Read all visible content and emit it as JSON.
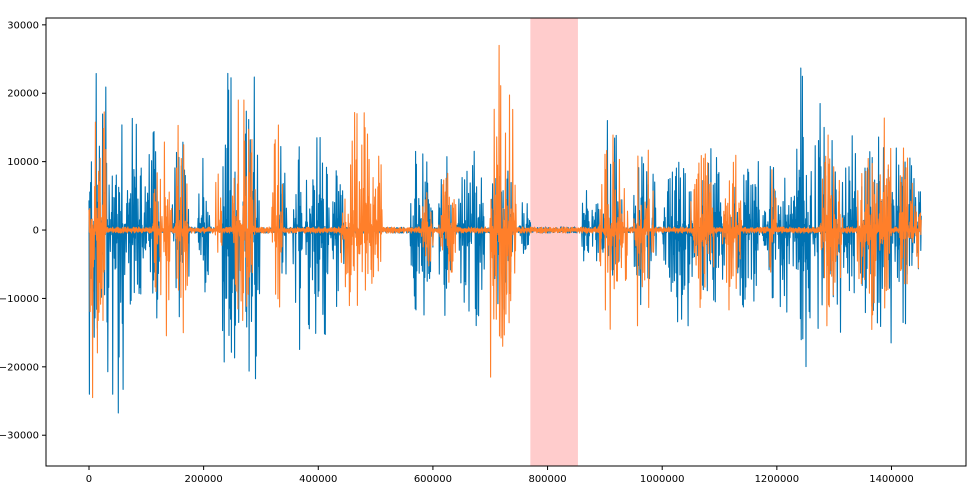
{
  "chart_data": {
    "type": "line",
    "title": "",
    "xlabel": "",
    "ylabel": "",
    "xlim": [
      -75000,
      1530000
    ],
    "ylim": [
      -34500,
      31000
    ],
    "x_ticks": [
      0,
      200000,
      400000,
      600000,
      800000,
      1000000,
      1200000,
      1400000
    ],
    "x_tick_labels": [
      "0",
      "200000",
      "400000",
      "600000",
      "800000",
      "1000000",
      "1200000",
      "1400000"
    ],
    "y_ticks": [
      30000,
      20000,
      10000,
      0,
      -10000,
      -20000,
      -30000
    ],
    "y_tick_labels": [
      "30000",
      "20000",
      "10000",
      "0",
      "−10000",
      "−20000",
      "−30000"
    ],
    "grid": false,
    "highlight_span": {
      "x_start": 770000,
      "x_end": 853000,
      "color": "#ffcccc"
    },
    "series": [
      {
        "color": "#0072b2",
        "bursts": [
          {
            "x_start": 0,
            "x_end": 45000,
            "amp_pos": 27500,
            "amp_neg": -24000
          },
          {
            "x_start": 45000,
            "x_end": 65000,
            "amp_pos": 28300,
            "amp_neg": -31500
          },
          {
            "x_start": 65000,
            "x_end": 100000,
            "amp_pos": 19000,
            "amp_neg": -16000
          },
          {
            "x_start": 100000,
            "x_end": 125000,
            "amp_pos": 15000,
            "amp_neg": -15000
          },
          {
            "x_start": 145000,
            "x_end": 175000,
            "amp_pos": 14500,
            "amp_neg": -17500
          },
          {
            "x_start": 190000,
            "x_end": 210000,
            "amp_pos": 13000,
            "amp_neg": -13500
          },
          {
            "x_start": 232000,
            "x_end": 262000,
            "amp_pos": 27000,
            "amp_neg": -31000
          },
          {
            "x_start": 268000,
            "x_end": 298000,
            "amp_pos": 28000,
            "amp_neg": -31000
          },
          {
            "x_start": 330000,
            "x_end": 345000,
            "amp_pos": 17000,
            "amp_neg": -12000
          },
          {
            "x_start": 355000,
            "x_end": 372000,
            "amp_pos": 13500,
            "amp_neg": -21500
          },
          {
            "x_start": 378000,
            "x_end": 420000,
            "amp_pos": 16500,
            "amp_neg": -23500
          },
          {
            "x_start": 420000,
            "x_end": 445000,
            "amp_pos": 10000,
            "amp_neg": -12000
          },
          {
            "x_start": 560000,
            "x_end": 600000,
            "amp_pos": 11500,
            "amp_neg": -14500
          },
          {
            "x_start": 610000,
            "x_end": 635000,
            "amp_pos": 11000,
            "amp_neg": -13000
          },
          {
            "x_start": 640000,
            "x_end": 690000,
            "amp_pos": 13000,
            "amp_neg": -16000
          },
          {
            "x_start": 700000,
            "x_end": 740000,
            "amp_pos": 12000,
            "amp_neg": -13500
          },
          {
            "x_start": 750000,
            "x_end": 770000,
            "amp_pos": 5000,
            "amp_neg": -4000
          },
          {
            "x_start": 860000,
            "x_end": 890000,
            "amp_pos": 9000,
            "amp_neg": -9500
          },
          {
            "x_start": 895000,
            "x_end": 930000,
            "amp_pos": 16000,
            "amp_neg": -12000
          },
          {
            "x_start": 950000,
            "x_end": 990000,
            "amp_pos": 13000,
            "amp_neg": -13000
          },
          {
            "x_start": 1000000,
            "x_end": 1060000,
            "amp_pos": 10000,
            "amp_neg": -14000
          },
          {
            "x_start": 1060000,
            "x_end": 1110000,
            "amp_pos": 12500,
            "amp_neg": -13000
          },
          {
            "x_start": 1120000,
            "x_end": 1170000,
            "amp_pos": 10000,
            "amp_neg": -13500
          },
          {
            "x_start": 1175000,
            "x_end": 1230000,
            "amp_pos": 11500,
            "amp_neg": -12000
          },
          {
            "x_start": 1230000,
            "x_end": 1260000,
            "amp_pos": 25500,
            "amp_neg": -26000
          },
          {
            "x_start": 1260000,
            "x_end": 1290000,
            "amp_pos": 18500,
            "amp_neg": -18500
          },
          {
            "x_start": 1290000,
            "x_end": 1340000,
            "amp_pos": 21000,
            "amp_neg": -17000
          },
          {
            "x_start": 1345000,
            "x_end": 1400000,
            "amp_pos": 15000,
            "amp_neg": -16500
          },
          {
            "x_start": 1400000,
            "x_end": 1452000,
            "amp_pos": 12000,
            "amp_neg": -14000
          }
        ]
      },
      {
        "color": "#ff7f2a",
        "bursts": [
          {
            "x_start": 0,
            "x_end": 30000,
            "amp_pos": 28000,
            "amp_neg": -24500
          },
          {
            "x_start": 110000,
            "x_end": 145000,
            "amp_pos": 17000,
            "amp_neg": -18500
          },
          {
            "x_start": 150000,
            "x_end": 175000,
            "amp_pos": 19500,
            "amp_neg": -17000
          },
          {
            "x_start": 218000,
            "x_end": 232000,
            "amp_pos": 9000,
            "amp_neg": -7000
          },
          {
            "x_start": 250000,
            "x_end": 290000,
            "amp_pos": 19000,
            "amp_neg": -15000
          },
          {
            "x_start": 318000,
            "x_end": 338000,
            "amp_pos": 16000,
            "amp_neg": -21500
          },
          {
            "x_start": 440000,
            "x_end": 500000,
            "amp_pos": 18500,
            "amp_neg": -14500
          },
          {
            "x_start": 500000,
            "x_end": 512000,
            "amp_pos": 15000,
            "amp_neg": -10000
          },
          {
            "x_start": 580000,
            "x_end": 600000,
            "amp_pos": 6000,
            "amp_neg": -6000
          },
          {
            "x_start": 610000,
            "x_end": 640000,
            "amp_pos": 9000,
            "amp_neg": -9000
          },
          {
            "x_start": 700000,
            "x_end": 745000,
            "amp_pos": 27000,
            "amp_neg": -21500
          },
          {
            "x_start": 890000,
            "x_end": 940000,
            "amp_pos": 14500,
            "amp_neg": -14500
          },
          {
            "x_start": 950000,
            "x_end": 985000,
            "amp_pos": 14000,
            "amp_neg": -14000
          },
          {
            "x_start": 1050000,
            "x_end": 1090000,
            "amp_pos": 13500,
            "amp_neg": -14000
          },
          {
            "x_start": 1105000,
            "x_end": 1140000,
            "amp_pos": 12000,
            "amp_neg": -13000
          },
          {
            "x_start": 1185000,
            "x_end": 1200000,
            "amp_pos": 10000,
            "amp_neg": -8000
          },
          {
            "x_start": 1275000,
            "x_end": 1315000,
            "amp_pos": 17000,
            "amp_neg": -14000
          },
          {
            "x_start": 1340000,
            "x_end": 1380000,
            "amp_pos": 13500,
            "amp_neg": -16000
          },
          {
            "x_start": 1380000,
            "x_end": 1400000,
            "amp_pos": 22000,
            "amp_neg": -15500
          },
          {
            "x_start": 1410000,
            "x_end": 1440000,
            "amp_pos": 13000,
            "amp_neg": -15000
          },
          {
            "x_start": 1440000,
            "x_end": 1452000,
            "amp_pos": 17500,
            "amp_neg": -12000
          }
        ]
      }
    ]
  }
}
